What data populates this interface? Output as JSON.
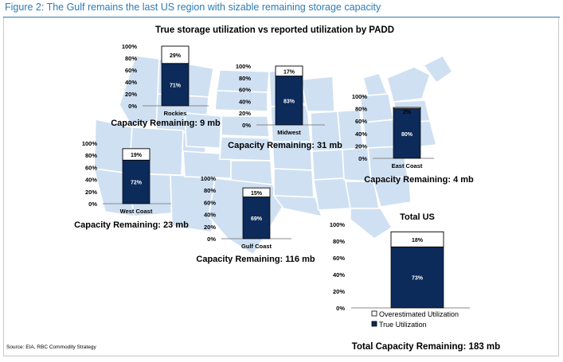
{
  "figure_title": "Figure 2: The Gulf remains the last US region with sizable remaining storage capacity",
  "source": "Source: EIA, RBC Commodity Strategy",
  "colors": {
    "true": "#0c2a5a",
    "over": "#ffffff",
    "map": "#cfe0f2",
    "map_stroke": "#ffffff",
    "title_blue": "#2c7bb6"
  },
  "chart_data": {
    "type": "bar",
    "title": "True storage utilization vs reported utilization by PADD",
    "stacked": true,
    "yticks": [
      "0%",
      "20%",
      "40%",
      "60%",
      "80%",
      "100%"
    ],
    "ylim": [
      0,
      100
    ],
    "legend": {
      "position": "bottom-right",
      "entries": [
        "Overestimated Utilization",
        "True Utilization"
      ]
    },
    "panels": [
      {
        "name": "Rockies",
        "true": 71,
        "over": 29,
        "true_label": "71%",
        "over_label": "29%",
        "capacity": "Capacity Remaining: 9 mb"
      },
      {
        "name": "Midwest",
        "true": 83,
        "over": 17,
        "true_label": "83%",
        "over_label": "17%",
        "capacity": "Capacity Remaining: 31 mb"
      },
      {
        "name": "East Coast",
        "true": 80,
        "over": 2,
        "true_label": "80%",
        "over_label": "2%",
        "capacity": "Capacity Remaining: 4 mb"
      },
      {
        "name": "West Coast",
        "true": 72,
        "over": 19,
        "true_label": "72%",
        "over_label": "19%",
        "capacity": "Capacity Remaining: 23 mb"
      },
      {
        "name": "Gulf Coast",
        "true": 69,
        "over": 15,
        "true_label": "69%",
        "over_label": "15%",
        "capacity": "Capacity Remaining: 116 mb"
      },
      {
        "name": "",
        "true": 73,
        "over": 18,
        "true_label": "73%",
        "over_label": "18%",
        "capacity": "Total Capacity Remaining: 183 mb",
        "heading": "Total US"
      }
    ]
  }
}
